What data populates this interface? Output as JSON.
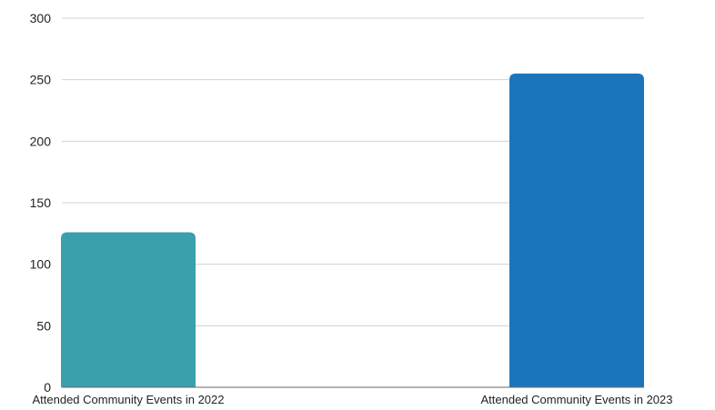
{
  "chart_data": {
    "type": "bar",
    "categories": [
      "Attended Community Events in 2022",
      "Attended Community Events in 2023"
    ],
    "values": [
      126,
      255
    ],
    "colors": [
      "#3aa0ad",
      "#1b75bc"
    ],
    "yticks": [
      0,
      50,
      100,
      150,
      200,
      250,
      300
    ],
    "ylim": [
      0,
      300
    ],
    "grid": true,
    "legend": "none"
  }
}
